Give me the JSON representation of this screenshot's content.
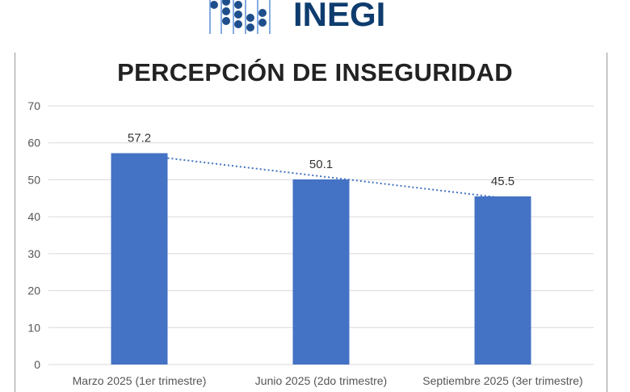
{
  "logo": {
    "text": "INEGI",
    "color": "#0e3c6e"
  },
  "chart_data": {
    "type": "bar",
    "title": "PERCEPCIÓN DE INSEGURIDAD",
    "categories": [
      "Marzo 2025 (1er trimestre)",
      "Junio 2025 (2do trimestre)",
      "Septiembre 2025 (3er trimestre)"
    ],
    "values": [
      57.2,
      50.1,
      45.5
    ],
    "data_labels": [
      "57.2",
      "50.1",
      "45.5"
    ],
    "ylim": [
      0,
      70
    ],
    "yticks": [
      0,
      10,
      20,
      30,
      40,
      50,
      60,
      70
    ],
    "grid": true,
    "trendline": "linear dotted",
    "bar_color": "#4472c4",
    "xlabel": "",
    "ylabel": ""
  }
}
